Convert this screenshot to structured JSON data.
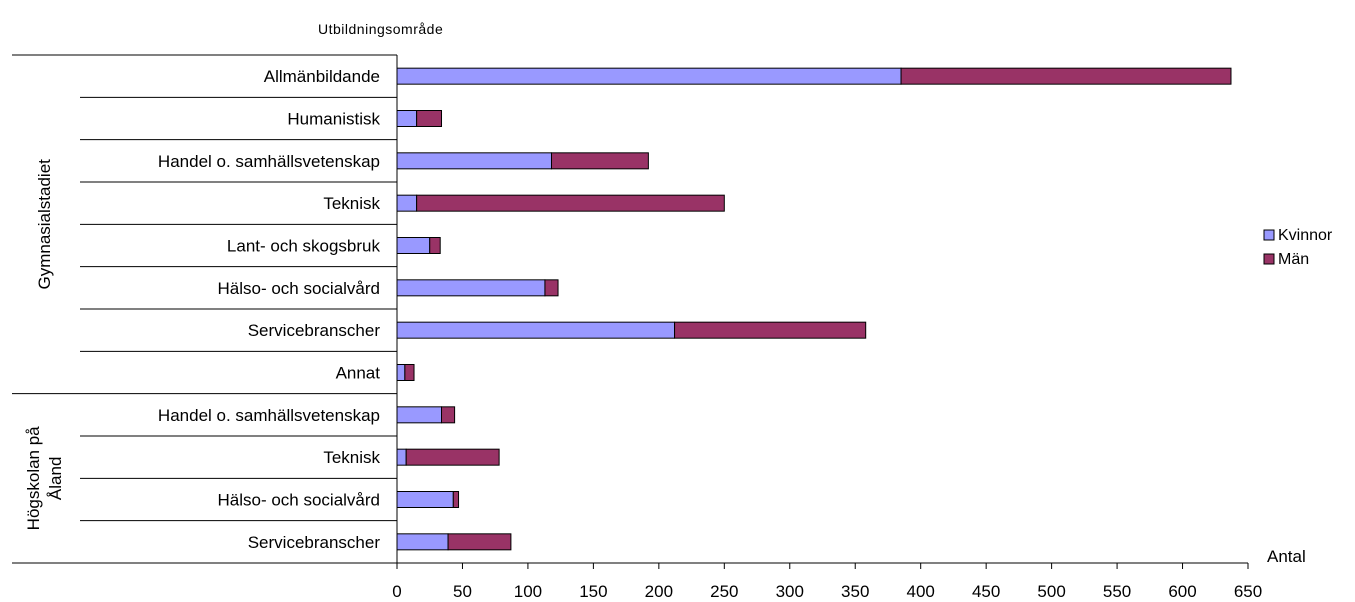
{
  "chart_data": {
    "type": "bar",
    "orientation": "horizontal",
    "stacked": true,
    "title": "Utbildningsområde",
    "xlabel": "Antal",
    "ylabel": "",
    "xlim": [
      0,
      650
    ],
    "xticks": [
      0,
      50,
      100,
      150,
      200,
      250,
      300,
      350,
      400,
      450,
      500,
      550,
      600,
      650
    ],
    "grid": false,
    "legend_position": "right",
    "groups": [
      {
        "name": "Gymnasialstadiet",
        "name_lines": [
          "Gymnasialstadiet"
        ],
        "start": 0,
        "count": 8
      },
      {
        "name": "Högskolan på Åland",
        "name_lines": [
          "Högskolan på",
          "Åland"
        ],
        "start": 8,
        "count": 4
      }
    ],
    "categories": [
      "Allmänbildande",
      "Humanistisk",
      "Handel o. samhällsvetenskap",
      "Teknisk",
      "Lant- och skogsbruk",
      "Hälso- och socialvård",
      "Servicebranscher",
      "Annat",
      "Handel o. samhällsvetenskap",
      "Teknisk",
      "Hälso- och socialvård",
      "Servicebranscher"
    ],
    "series": [
      {
        "name": "Kvinnor",
        "color": "#9999ff",
        "values": [
          385,
          15,
          118,
          15,
          25,
          113,
          212,
          6,
          34,
          7,
          43,
          39
        ]
      },
      {
        "name": "Män",
        "color": "#993366",
        "values": [
          252,
          19,
          74,
          235,
          8,
          10,
          146,
          7,
          10,
          71,
          4,
          48
        ]
      }
    ]
  }
}
